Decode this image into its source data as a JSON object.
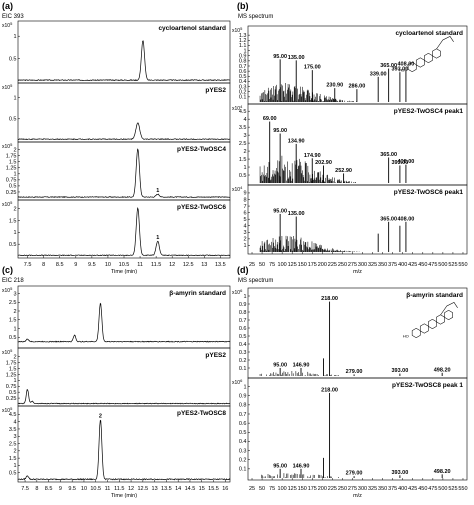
{
  "panels": [
    {
      "id": "a",
      "header": "(a)",
      "subheader": "EIC 393"
    },
    {
      "id": "b",
      "header": "(b)",
      "subheader": "MS spectrum"
    },
    {
      "id": "c",
      "header": "(c)",
      "subheader": "EIC 218"
    },
    {
      "id": "d",
      "header": "(d)",
      "subheader": "MS spectrum"
    }
  ],
  "chart_data": [
    {
      "panel": "a",
      "type": "line",
      "xlabel": "Time (min)",
      "xticks": [
        "7.5",
        "8",
        "8.5",
        "9",
        "9.5",
        "10",
        "10.5",
        "11",
        "11.5",
        "12",
        "12.5",
        "13",
        "13.5"
      ],
      "xlim": [
        7.2,
        13.8
      ],
      "subplots": [
        {
          "label": "cycloartenol standard",
          "exponent": "5",
          "yticks": [
            "0.5",
            "1"
          ],
          "ymax": 1.25,
          "baseline": 0.02,
          "peaks": [
            [
              11.09,
              0.88,
              0.05
            ]
          ],
          "peak_labels": []
        },
        {
          "label": "pYES2",
          "exponent": "5",
          "yticks": [
            "0.5",
            "1"
          ],
          "ymax": 1.25,
          "baseline": 0.02,
          "peaks": [
            [
              10.93,
              0.38,
              0.06
            ]
          ],
          "peak_labels": []
        },
        {
          "label": "pYES2-TwOSC4",
          "exponent": "5",
          "yticks": [
            "0.25",
            "0.5",
            "0.75",
            "1",
            "1.25",
            "1.5",
            "1.75",
            "2"
          ],
          "ymax": 2.15,
          "baseline": 0.04,
          "peaks": [
            [
              10.93,
              2.0,
              0.05
            ],
            [
              11.55,
              0.12,
              0.05
            ]
          ],
          "peak_labels": [
            {
              "x": 11.55,
              "text": "1"
            }
          ]
        },
        {
          "label": "pYES2-TwOSC6",
          "exponent": "5",
          "yticks": [
            "0.5",
            "1",
            "1.5",
            "2"
          ],
          "ymax": 2.2,
          "baseline": 0.03,
          "peaks": [
            [
              10.93,
              2.0,
              0.05
            ],
            [
              11.55,
              0.6,
              0.05
            ]
          ],
          "peak_labels": [
            {
              "x": 11.55,
              "text": "1"
            }
          ]
        }
      ]
    },
    {
      "panel": "b",
      "type": "bar",
      "xlabel": "m/z",
      "xticks": [
        "25",
        "50",
        "75",
        "100",
        "125",
        "150",
        "175",
        "200",
        "225",
        "250",
        "275",
        "300",
        "325",
        "350",
        "375",
        "400",
        "425",
        "450",
        "475",
        "500",
        "525",
        "550"
      ],
      "xlim": [
        15,
        560
      ],
      "subplots": [
        {
          "label": "cycloartenol standard",
          "exponent": "5",
          "yticks": [
            "0.1",
            "0.2",
            "0.3",
            "0.4",
            "0.5",
            "0.6",
            "0.7",
            "0.8",
            "0.9",
            "1",
            "1.1",
            "1.2",
            "1.3"
          ],
          "ymax": 1.4,
          "peaks": [
            [
              95,
              0.83
            ],
            [
              135,
              0.81
            ],
            [
              175,
              0.62
            ],
            [
              230.9,
              0.27
            ],
            [
              286,
              0.25
            ],
            [
              339,
              0.49
            ],
            [
              365,
              0.65
            ],
            [
              393,
              0.58
            ],
            [
              408,
              0.68
            ]
          ],
          "peak_labels": [
            {
              "x": 95,
              "text": "95.00"
            },
            {
              "x": 135,
              "text": "135.00"
            },
            {
              "x": 175,
              "text": "175.00"
            },
            {
              "x": 230.9,
              "text": "230.90"
            },
            {
              "x": 286,
              "text": "286.00"
            },
            {
              "x": 339,
              "text": "339.00"
            },
            {
              "x": 365,
              "text": "365.00"
            },
            {
              "x": 393,
              "text": "393.00"
            },
            {
              "x": 408,
              "text": "408.00"
            }
          ],
          "structure": "cycloartenol"
        },
        {
          "label": "pYES2-TwOSC4 peak1",
          "exponent": "4",
          "yticks": [
            "0.5",
            "1",
            "1.5",
            "2",
            "2.5",
            "3",
            "3.5",
            "4",
            "4.5"
          ],
          "ymax": 4.7,
          "peaks": [
            [
              69,
              3.85
            ],
            [
              95,
              3.1
            ],
            [
              134.9,
              2.45
            ],
            [
              174.9,
              1.55
            ],
            [
              202.9,
              1.1
            ],
            [
              252.9,
              0.6
            ],
            [
              365,
              1.6
            ],
            [
              393,
              1.1
            ],
            [
              408,
              1.15
            ]
          ],
          "peak_labels": [
            {
              "x": 69,
              "text": "69.00"
            },
            {
              "x": 95,
              "text": "95.00"
            },
            {
              "x": 134.9,
              "text": "134.90"
            },
            {
              "x": 174.9,
              "text": "174.90"
            },
            {
              "x": 202.9,
              "text": "202.90"
            },
            {
              "x": 252.9,
              "text": "252.90"
            },
            {
              "x": 365,
              "text": "365.00"
            },
            {
              "x": 393,
              "text": "393.00"
            },
            {
              "x": 408,
              "text": "408.00"
            }
          ]
        },
        {
          "label": "pYES2-TwOSC6 peak1",
          "exponent": "4",
          "yticks": [
            "1",
            "2",
            "3",
            "4",
            "5",
            "6",
            "7",
            "8",
            "9"
          ],
          "ymax": 9.6,
          "peaks": [
            [
              95,
              5.8
            ],
            [
              135,
              5.4
            ],
            [
              339,
              2.8
            ],
            [
              365,
              4.6
            ],
            [
              393,
              4.0
            ],
            [
              408,
              4.6
            ]
          ],
          "peak_labels": [
            {
              "x": 95,
              "text": "95.00"
            },
            {
              "x": 135,
              "text": "135.00"
            },
            {
              "x": 365,
              "text": "365.00"
            },
            {
              "x": 408,
              "text": "408.00"
            }
          ]
        }
      ]
    },
    {
      "panel": "c",
      "type": "line",
      "xlabel": "Time (min)",
      "xticks": [
        "7.5",
        "8",
        "8.5",
        "9",
        "9.5",
        "10",
        "10.5",
        "11",
        "11.5",
        "12",
        "12.5",
        "13",
        "13.5",
        "14",
        "14.5",
        "15",
        "15.5",
        "16"
      ],
      "xlim": [
        7.2,
        16.2
      ],
      "subplots": [
        {
          "label": "β-amyrin  standard",
          "exponent": "5",
          "yticks": [
            "0.5",
            "1",
            "1.5",
            "2",
            "2.5",
            "3"
          ],
          "ymax": 3.2,
          "baseline": 0.25,
          "peaks": [
            [
              7.6,
              0.15,
              0.05
            ],
            [
              9.6,
              0.38,
              0.05
            ],
            [
              10.7,
              2.2,
              0.06
            ]
          ],
          "peak_labels": []
        },
        {
          "label": "pYES2",
          "exponent": "5",
          "yticks": [
            "0.25",
            "0.5",
            "0.75",
            "1",
            "1.25",
            "1.5",
            "1.75",
            "2"
          ],
          "ymax": 2.2,
          "baseline": 0.02,
          "peaks": [
            [
              7.6,
              0.6,
              0.05
            ],
            [
              7.8,
              0.1,
              0.05
            ]
          ],
          "peak_labels": []
        },
        {
          "label": "pYES2-TwOSC8",
          "exponent": "5",
          "yticks": [
            "0.5",
            "1",
            "1.5",
            "2",
            "2.5",
            "3",
            "3.5",
            "4",
            "4.5"
          ],
          "ymax": 4.8,
          "baseline": 0.05,
          "peaks": [
            [
              7.6,
              0.25,
              0.05
            ],
            [
              10.7,
              4.1,
              0.06
            ]
          ],
          "peak_labels": [
            {
              "x": 10.7,
              "text": "2"
            }
          ]
        }
      ]
    },
    {
      "panel": "d",
      "type": "bar",
      "xlabel": "m/z",
      "xticks": [
        "25",
        "50",
        "75",
        "100",
        "125",
        "150",
        "175",
        "200",
        "225",
        "250",
        "275",
        "300",
        "325",
        "350",
        "375",
        "400",
        "425",
        "450",
        "475",
        "500",
        "525",
        "550"
      ],
      "xlim": [
        15,
        560
      ],
      "subplots": [
        {
          "label": "β-amyrin standard",
          "exponent": "6",
          "yticks": [
            "0.1",
            "0.2",
            "0.3",
            "0.4",
            "0.5",
            "0.6",
            "0.7",
            "0.8",
            "0.9",
            "1"
          ],
          "ymax": 1.05,
          "peaks": [
            [
              95,
              0.1
            ],
            [
              146.9,
              0.1
            ],
            [
              203,
              0.22
            ],
            [
              218,
              0.93
            ],
            [
              279,
              0.02
            ],
            [
              393,
              0.03
            ],
            [
              498.2,
              0.04
            ]
          ],
          "peak_labels": [
            {
              "x": 95,
              "text": "95.00"
            },
            {
              "x": 146.9,
              "text": "146.90"
            },
            {
              "x": 218,
              "text": "218.00"
            },
            {
              "x": 279,
              "text": "279.00"
            },
            {
              "x": 393,
              "text": "393.00"
            },
            {
              "x": 498.2,
              "text": "498.20"
            }
          ],
          "structure": "beta-amyrin"
        },
        {
          "label": "pYES2-TwOSC8 peak 1",
          "exponent": "6",
          "yticks": [
            "0.1",
            "0.2",
            "0.3",
            "0.4",
            "0.5",
            "0.6",
            "0.7",
            "0.8",
            "0.9",
            "1"
          ],
          "ymax": 1.05,
          "peaks": [
            [
              95,
              0.1
            ],
            [
              146.9,
              0.1
            ],
            [
              203,
              0.22
            ],
            [
              218,
              0.93
            ],
            [
              279,
              0.02
            ],
            [
              393,
              0.03
            ],
            [
              498.2,
              0.04
            ]
          ],
          "peak_labels": [
            {
              "x": 95,
              "text": "95.00"
            },
            {
              "x": 146.9,
              "text": "146.90"
            },
            {
              "x": 218,
              "text": "218.00"
            },
            {
              "x": 279,
              "text": "279.00"
            },
            {
              "x": 393,
              "text": "393.00"
            },
            {
              "x": 498.2,
              "text": "498.20"
            }
          ]
        }
      ]
    }
  ]
}
